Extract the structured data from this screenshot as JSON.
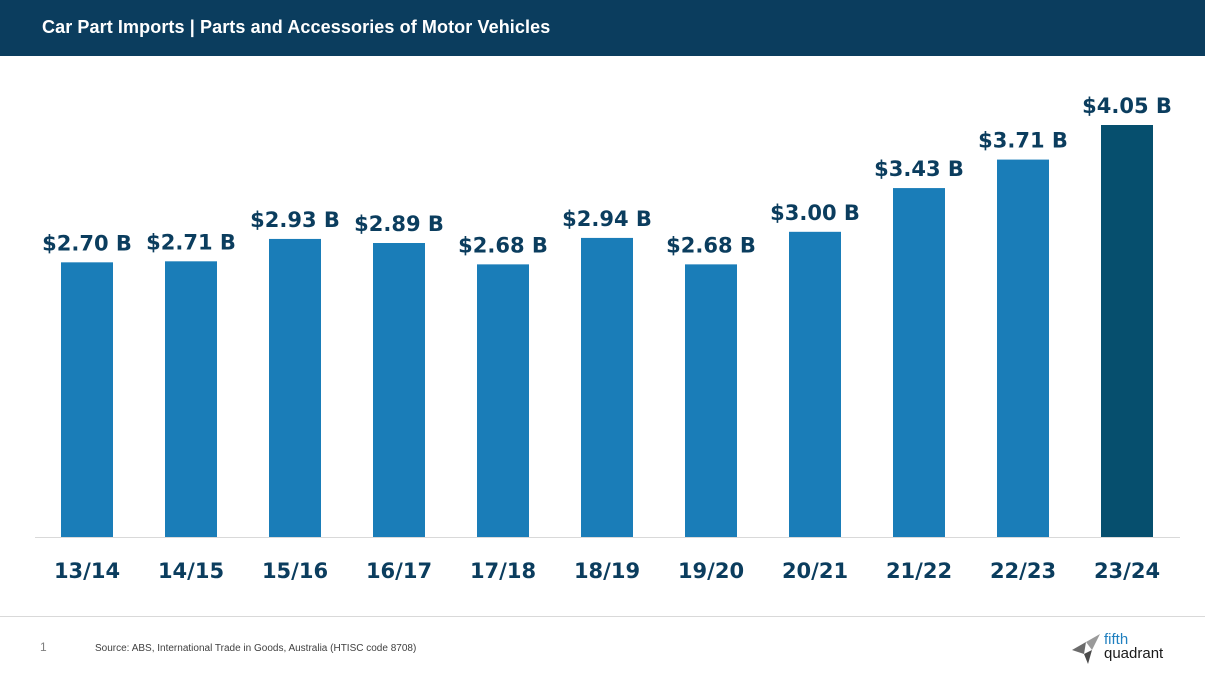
{
  "header": {
    "title": "Car Part Imports | Parts and Accessories of Motor Vehicles"
  },
  "footer": {
    "page_number": "1",
    "source": "Source: ABS, International Trade in Goods, Australia (HTISC code 8708)",
    "logo": {
      "line1": "fifth",
      "line2": "quadrant",
      "icon": "fifth-quadrant-logo-icon"
    }
  },
  "chart_data": {
    "type": "bar",
    "title": "",
    "xlabel": "",
    "ylabel": "",
    "categories": [
      "13/14",
      "14/15",
      "15/16",
      "16/17",
      "17/18",
      "18/19",
      "19/20",
      "20/21",
      "21/22",
      "22/23",
      "23/24"
    ],
    "values": [
      2.7,
      2.71,
      2.93,
      2.89,
      2.68,
      2.94,
      2.68,
      3.0,
      3.43,
      3.71,
      4.05
    ],
    "labels": [
      "$2.70 B",
      "$2.71 B",
      "$2.93 B",
      "$2.89 B",
      "$2.68 B",
      "$2.94 B",
      "$2.68 B",
      "$3.00 B",
      "$3.43 B",
      "$3.71 B",
      "$4.05 B"
    ],
    "ylim": [
      0,
      4.05
    ],
    "grid": false,
    "legend": "none",
    "colors": {
      "bar": "#1a7db8",
      "highlight": "#064f6e",
      "label": "#0b3d5e",
      "axis": "#d9d9d9"
    },
    "highlight_index": 10
  }
}
